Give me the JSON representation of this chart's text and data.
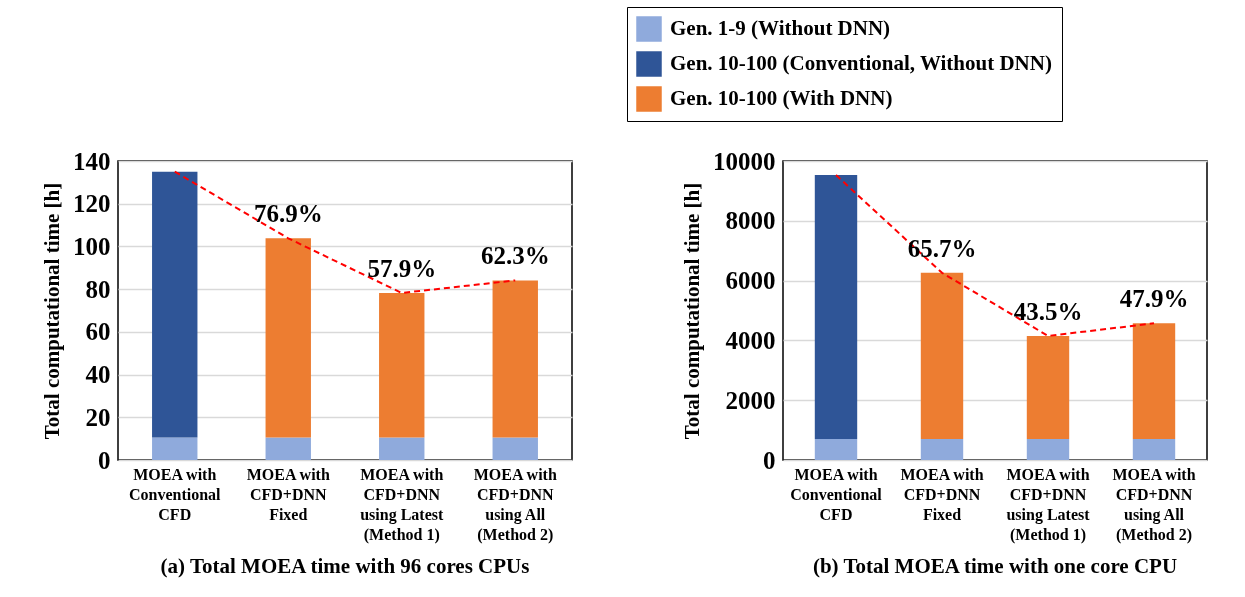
{
  "chart_data": [
    {
      "type": "bar",
      "title": "(a) Total MOEA time with 96 cores CPUs",
      "ylabel": "Total computational time [h]",
      "stacked": true,
      "grid": "y",
      "categories": [
        "MOEA with\nConventional\nCFD",
        "MOEA with\nCFD+DNN\nFixed",
        "MOEA with\nCFD+DNN\nusing Latest\n(Method 1)",
        "MOEA with\nCFD+DNN\nusing All\n(Method 2)"
      ],
      "ylim": [
        0,
        140
      ],
      "yticks": [
        0,
        20,
        40,
        60,
        80,
        100,
        120,
        140
      ],
      "series": [
        {
          "color": "#8faadc",
          "values": [
            10.5,
            10.5,
            10.5,
            10.5
          ]
        },
        {
          "color": "#2f5597",
          "values": [
            124.5,
            null,
            null,
            null
          ]
        },
        {
          "color": "#ed7d31",
          "values": [
            null,
            93.3,
            67.7,
            73.6
          ]
        },
        {
          "type": "line",
          "color": "#ff0000",
          "line_style": "dashed",
          "values": [
            135,
            103.8,
            78.2,
            84.1
          ]
        }
      ],
      "annotations": [
        {
          "text": "76.9%",
          "x": "MOEA with\nCFD+DNN\nFixed",
          "y": 103.8
        },
        {
          "text": "57.9%",
          "x": "MOEA with\nCFD+DNN\nusing Latest\n(Method 1)",
          "y": 78.2
        },
        {
          "text": "62.3%",
          "x": "MOEA with\nCFD+DNN\nusing All\n(Method 2)",
          "y": 84.1
        }
      ]
    },
    {
      "type": "bar",
      "title": "(b) Total MOEA time with  one core CPU",
      "ylabel": "Total computational time [h]",
      "stacked": true,
      "grid": "y",
      "legend": "top",
      "categories": [
        "MOEA with\nConventional\nCFD",
        "MOEA with\nCFD+DNN\nFixed",
        "MOEA with\nCFD+DNN\nusing Latest\n(Method 1)",
        "MOEA with\nCFD+DNN\nusing All\n(Method 2)"
      ],
      "ylim": [
        0,
        10000
      ],
      "yticks": [
        0,
        2000,
        4000,
        6000,
        8000,
        10000
      ],
      "series": [
        {
          "name": "Gen. 1-9 (Without DNN)",
          "color": "#8faadc",
          "values": [
            700,
            700,
            700,
            700
          ]
        },
        {
          "name": "Gen. 10-100 (Conventional, Without DNN)",
          "color": "#2f5597",
          "values": [
            8830,
            null,
            null,
            null
          ]
        },
        {
          "name": "Gen. 10-100 (With DNN)",
          "color": "#ed7d31",
          "values": [
            null,
            5560,
            3450,
            3870
          ]
        },
        {
          "type": "line",
          "color": "#ff0000",
          "line_style": "dashed",
          "values": [
            9530,
            6260,
            4150,
            4570
          ]
        }
      ],
      "annotations": [
        {
          "text": "65.7%",
          "x": "MOEA with\nCFD+DNN\nFixed",
          "y": 6260
        },
        {
          "text": "43.5%",
          "x": "MOEA with\nCFD+DNN\nusing Latest\n(Method 1)",
          "y": 4150
        },
        {
          "text": "47.9%",
          "x": "MOEA with\nCFD+DNN\nusing All\n(Method 2)",
          "y": 4570
        }
      ]
    }
  ]
}
